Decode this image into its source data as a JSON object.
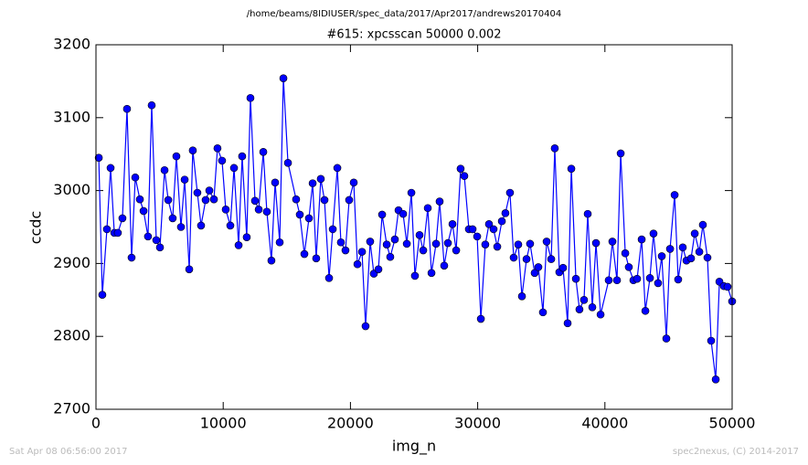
{
  "chart_data": {
    "type": "line",
    "suptitle": "/home/beams/8IDIUSER/spec_data/2017/Apr2017/andrews20170404",
    "title": "#615: xpcsscan 50000 0.002",
    "footer_left": "Sat Apr 08 06:56:00 2017",
    "footer_right": "spec2nexus, (C) 2014-2017",
    "x_label": "img_n",
    "y_label": "ccdc",
    "xlim": [
      0,
      50000
    ],
    "xticks": [
      0,
      10000,
      20000,
      30000,
      40000,
      50000
    ],
    "ylim": [
      2700,
      3200
    ],
    "yticks": [
      2700,
      2800,
      2900,
      3000,
      3100,
      3200
    ],
    "x": [
      220,
      500,
      860,
      1150,
      1440,
      1720,
      2080,
      2440,
      2800,
      3090,
      3450,
      3740,
      4090,
      4380,
      4740,
      5030,
      5390,
      5680,
      6030,
      6320,
      6680,
      6970,
      7330,
      7610,
      7970,
      8260,
      8620,
      8910,
      9270,
      9550,
      9910,
      10200,
      10560,
      10850,
      11210,
      11490,
      11850,
      12140,
      12500,
      12790,
      13150,
      13430,
      13790,
      14080,
      14440,
      14730,
      15090,
      15730,
      16020,
      16380,
      16740,
      17030,
      17310,
      17670,
      17960,
      18320,
      18610,
      18970,
      19250,
      19610,
      19900,
      20260,
      20550,
      20910,
      21190,
      21550,
      21840,
      22200,
      22490,
      22850,
      23130,
      23490,
      23780,
      24140,
      24430,
      24790,
      25070,
      25430,
      25720,
      26080,
      26370,
      26730,
      27010,
      27370,
      27660,
      28020,
      28310,
      28660,
      28950,
      29310,
      29600,
      29960,
      30250,
      30600,
      30890,
      31250,
      31540,
      31900,
      32180,
      32540,
      32830,
      33190,
      33480,
      33840,
      34120,
      34480,
      34770,
      35130,
      35420,
      35780,
      36060,
      36420,
      36710,
      37070,
      37360,
      37720,
      38000,
      38360,
      38650,
      39010,
      39300,
      39660,
      40300,
      40590,
      40950,
      41240,
      41600,
      41880,
      42240,
      42530,
      42890,
      43180,
      43540,
      43820,
      44180,
      44470,
      44830,
      45120,
      45480,
      45760,
      46120,
      46410,
      46770,
      47060,
      47420,
      47700,
      48060,
      48350,
      48710,
      49000,
      49350,
      49640,
      50000
    ],
    "series": [
      {
        "name": "ccdc",
        "color": "#0000ff",
        "values": [
          3045,
          2857,
          2947,
          3031,
          2942,
          2942,
          2962,
          3112,
          2908,
          3018,
          2988,
          2972,
          2937,
          3117,
          2932,
          2922,
          3028,
          2987,
          2962,
          3047,
          2950,
          3015,
          2892,
          3055,
          2997,
          2952,
          2987,
          3000,
          2988,
          3058,
          3041,
          2974,
          2952,
          3031,
          2925,
          3047,
          2936,
          3127,
          2986,
          2974,
          3053,
          2971,
          2904,
          3011,
          2929,
          3154,
          3038,
          2988,
          2967,
          2913,
          2962,
          3010,
          2907,
          3016,
          2987,
          2880,
          2947,
          3031,
          2929,
          2918,
          2987,
          3011,
          2899,
          2916,
          2814,
          2930,
          2886,
          2892,
          2967,
          2926,
          2909,
          2933,
          2973,
          2968,
          2927,
          2997,
          2883,
          2939,
          2918,
          2976,
          2887,
          2927,
          2985,
          2897,
          2928,
          2954,
          2918,
          3030,
          3020,
          2947,
          2947,
          2937,
          2824,
          2926,
          2954,
          2947,
          2923,
          2958,
          2969,
          2997,
          2908,
          2926,
          2855,
          2906,
          2927,
          2887,
          2895,
          2833,
          2930,
          2906,
          3058,
          2888,
          2894,
          2818,
          3030,
          2879,
          2837,
          2850,
          2968,
          2840,
          2928,
          2830,
          2877,
          2930,
          2877,
          3051,
          2914,
          2895,
          2877,
          2879,
          2933,
          2835,
          2880,
          2941,
          2873,
          2910,
          2797,
          2920,
          2994,
          2878,
          2922,
          2904,
          2907,
          2941,
          2916,
          2953,
          2908,
          2794,
          2741,
          2875,
          2869,
          2868,
          2848
        ]
      }
    ]
  }
}
